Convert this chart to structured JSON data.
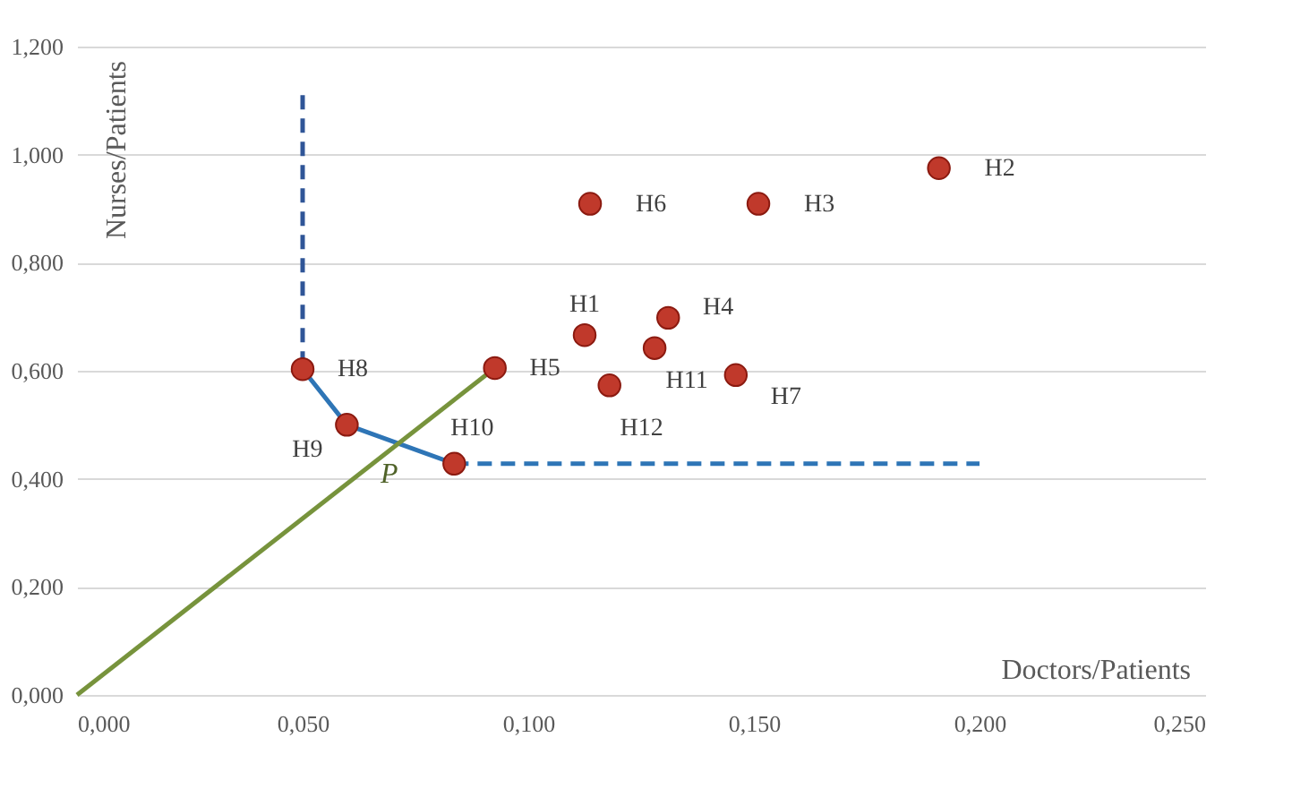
{
  "chart_data": {
    "type": "scatter",
    "xlabel": "Doctors/Patients",
    "ylabel": "Nurses/Patients",
    "xlim": [
      0,
      0.25
    ],
    "ylim": [
      0,
      1.2
    ],
    "xticks": [
      {
        "value": 0,
        "label": "0,000"
      },
      {
        "value": 0.05,
        "label": "0,050"
      },
      {
        "value": 0.1,
        "label": "0,100"
      },
      {
        "value": 0.15,
        "label": "0,150"
      },
      {
        "value": 0.2,
        "label": "0,200"
      },
      {
        "value": 0.25,
        "label": "0,250"
      }
    ],
    "yticks": [
      {
        "value": 0,
        "label": "0,000"
      },
      {
        "value": 0.2,
        "label": "0,200"
      },
      {
        "value": 0.4,
        "label": "0,400"
      },
      {
        "value": 0.6,
        "label": "0,600"
      },
      {
        "value": 0.8,
        "label": "0,800"
      },
      {
        "value": 1.0,
        "label": "1,000"
      },
      {
        "value": 1.2,
        "label": "1,200"
      }
    ],
    "grid": "y",
    "marker": "circle",
    "annotations": [
      "P"
    ],
    "series": [
      {
        "type": "line",
        "color": "#2f5597",
        "line_style": "dashed",
        "marker": "none",
        "x": [
          0.05,
          0.05
        ],
        "values": [
          1.11,
          0.603
        ]
      },
      {
        "type": "line",
        "color": "#2e75b6",
        "line_style": "solid",
        "marker": "none",
        "x": [
          0.05,
          0.0598,
          0.0836
        ],
        "values": [
          0.603,
          0.5,
          0.428
        ]
      },
      {
        "type": "line",
        "color": "#2e75b6",
        "line_style": "dashed",
        "marker": "none",
        "x": [
          0.0836,
          0.2
        ],
        "values": [
          0.428,
          0.428
        ]
      },
      {
        "type": "line",
        "color": "#77933c",
        "line_style": "solid",
        "marker": "none",
        "x": [
          0,
          0.0926
        ],
        "values": [
          0,
          0.605
        ]
      },
      {
        "name": "H1",
        "color": "#c0392b",
        "x": [
          0.1125
        ],
        "values": [
          0.666
        ]
      },
      {
        "name": "H2",
        "color": "#c0392b",
        "x": [
          0.191
        ],
        "values": [
          0.975
        ]
      },
      {
        "name": "H3",
        "color": "#c0392b",
        "x": [
          0.151
        ],
        "values": [
          0.909
        ]
      },
      {
        "name": "H4",
        "color": "#c0392b",
        "x": [
          0.131
        ],
        "values": [
          0.698
        ]
      },
      {
        "name": "H5",
        "color": "#c0392b",
        "x": [
          0.0926
        ],
        "values": [
          0.605
        ]
      },
      {
        "name": "H6",
        "color": "#c0392b",
        "x": [
          0.1137
        ],
        "values": [
          0.909
        ]
      },
      {
        "name": "H7",
        "color": "#c0392b",
        "x": [
          0.146
        ],
        "values": [
          0.592
        ]
      },
      {
        "name": "H8",
        "color": "#c0392b",
        "x": [
          0.05
        ],
        "values": [
          0.603
        ]
      },
      {
        "name": "H9",
        "color": "#c0392b",
        "x": [
          0.0598
        ],
        "values": [
          0.5
        ]
      },
      {
        "name": "H10",
        "color": "#c0392b",
        "x": [
          0.0836
        ],
        "values": [
          0.428
        ]
      },
      {
        "name": "H11",
        "color": "#c0392b",
        "x": [
          0.128
        ],
        "values": [
          0.642
        ]
      },
      {
        "name": "H12",
        "color": "#c0392b",
        "x": [
          0.118
        ],
        "values": [
          0.573
        ]
      }
    ]
  }
}
